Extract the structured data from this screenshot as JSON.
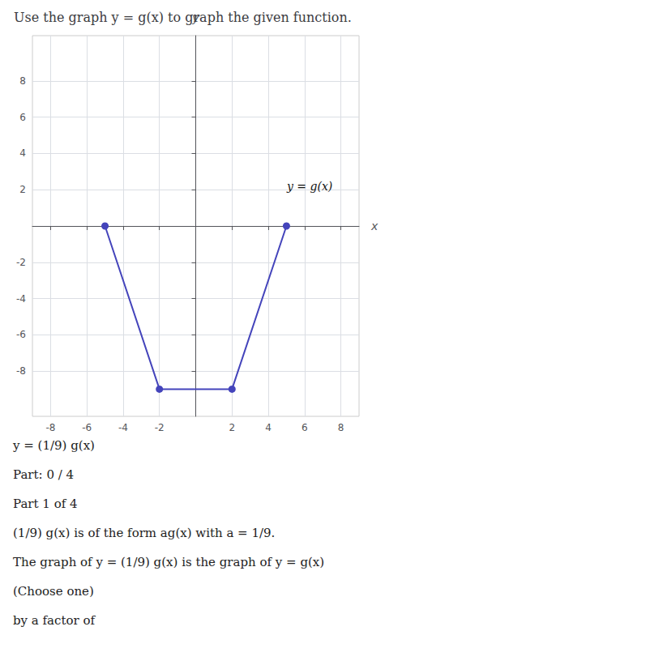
{
  "chart_data": {
    "type": "line",
    "title": "Use the graph y = g(x) to graph the given function.",
    "x": [
      -5,
      -2,
      2,
      5
    ],
    "values": [
      0,
      -9,
      -9,
      0
    ],
    "color": "#4444bb",
    "marker": "circle",
    "line_style": "solid",
    "xlim": [
      -9,
      9
    ],
    "ylim": [
      -10.5,
      10.5
    ],
    "xticks": [
      -8,
      -6,
      -4,
      -2,
      2,
      4,
      6,
      8
    ],
    "yticks": [
      8,
      6,
      4,
      2,
      -2,
      -4,
      -6,
      -8
    ],
    "xlabel": "x",
    "ylabel": "y",
    "grid": true,
    "annotations": [
      {
        "text": "y = g(x)",
        "x": 4.8,
        "y": 2.2
      },
      {
        "text": "y = (1/9) g(x)"
      },
      {
        "text": "Part: 0 / 4"
      },
      {
        "text": "Part 1 of 4"
      },
      {
        "text": "(1/9) g(x) is of the form ag(x) with a = 1/9."
      },
      {
        "text": "The graph of y = (1/9) g(x) is the graph of y = g(x)"
      },
      {
        "text": "(Choose one)"
      },
      {
        "text": "by a factor of"
      }
    ]
  }
}
